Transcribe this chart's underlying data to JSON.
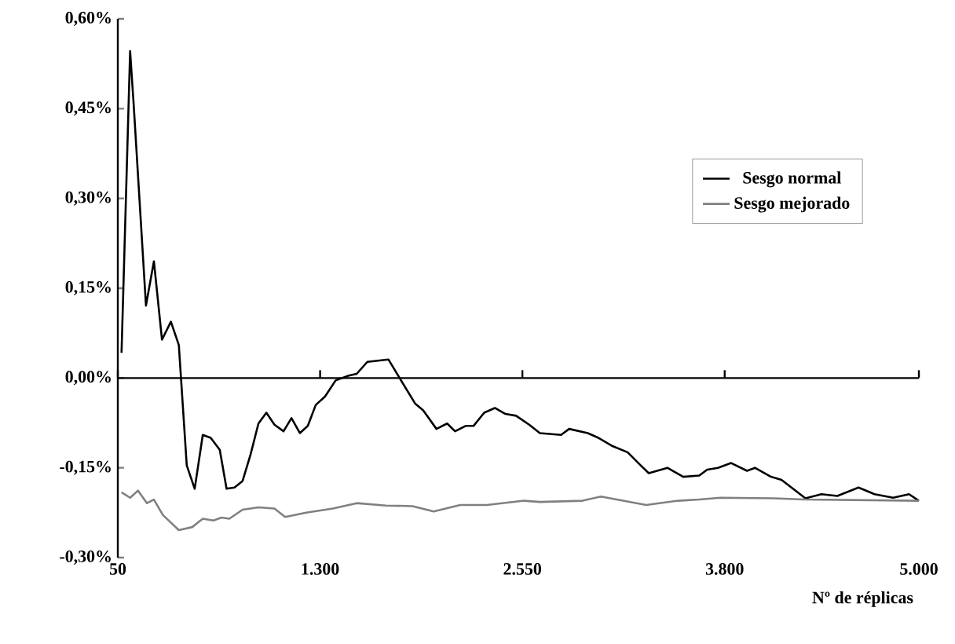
{
  "chart_data": {
    "type": "line",
    "xlabel": "Nº de réplicas",
    "xlim": [
      50,
      5000
    ],
    "ylim": [
      -0.3,
      0.6
    ],
    "xticks": [
      {
        "value": 50,
        "label": "50"
      },
      {
        "value": 1300,
        "label": "1.300"
      },
      {
        "value": 2550,
        "label": "2.550"
      },
      {
        "value": 3800,
        "label": "3.800"
      },
      {
        "value": 5000,
        "label": "5.000"
      }
    ],
    "yticks": [
      {
        "value": -0.3,
        "label": "-0,30%"
      },
      {
        "value": -0.15,
        "label": "-0,15%"
      },
      {
        "value": 0,
        "label": "0,00%"
      },
      {
        "value": 0.15,
        "label": "0,15%"
      },
      {
        "value": 0.3,
        "label": "0,30%"
      },
      {
        "value": 0.45,
        "label": "0,45%"
      },
      {
        "value": 0.6,
        "label": "0,60%"
      }
    ],
    "legend": "right",
    "ref_lines": [
      {
        "axis": "y",
        "value": 0,
        "color": "#000000"
      }
    ],
    "marker": "none",
    "line_style": "solid",
    "series": [
      {
        "name": "Sesgo normal",
        "color": "#000000",
        "x": [
          73,
          126,
          148,
          224,
          273,
          323,
          378,
          427,
          476,
          525,
          575,
          624,
          680,
          722,
          771,
          821,
          870,
          919,
          968,
          1018,
          1074,
          1123,
          1175,
          1224,
          1273,
          1330,
          1396,
          1477,
          1526,
          1592,
          1657,
          1722,
          1805,
          1888,
          1937,
          2019,
          2085,
          2134,
          2199,
          2248,
          2314,
          2380,
          2445,
          2511,
          2592,
          2658,
          2789,
          2839,
          2954,
          3020,
          3101,
          3200,
          3281,
          3331,
          3446,
          3544,
          3643,
          3692,
          3758,
          3840,
          3938,
          3987,
          4086,
          4151,
          4299,
          4398,
          4496,
          4627,
          4726,
          4841,
          4939,
          5000
        ],
        "values": [
          0.042,
          0.546,
          0.457,
          0.121,
          0.195,
          0.064,
          0.094,
          0.055,
          -0.146,
          -0.185,
          -0.095,
          -0.1,
          -0.12,
          -0.185,
          -0.183,
          -0.172,
          -0.128,
          -0.076,
          -0.058,
          -0.078,
          -0.089,
          -0.067,
          -0.092,
          -0.08,
          -0.045,
          -0.031,
          -0.004,
          0.004,
          0.007,
          0.027,
          0.029,
          0.031,
          -0.006,
          -0.043,
          -0.054,
          -0.085,
          -0.076,
          -0.089,
          -0.08,
          -0.08,
          -0.058,
          -0.05,
          -0.06,
          -0.063,
          -0.078,
          -0.092,
          -0.095,
          -0.085,
          -0.092,
          -0.1,
          -0.113,
          -0.124,
          -0.146,
          -0.159,
          -0.15,
          -0.165,
          -0.163,
          -0.153,
          -0.15,
          -0.142,
          -0.155,
          -0.15,
          -0.165,
          -0.17,
          -0.201,
          -0.194,
          -0.197,
          -0.183,
          -0.194,
          -0.2,
          -0.194,
          -0.205
        ]
      },
      {
        "name": "Sesgo mejorado",
        "color": "#808080",
        "x": [
          73,
          126,
          175,
          230,
          273,
          329,
          427,
          510,
          575,
          641,
          690,
          739,
          821,
          919,
          1018,
          1084,
          1214,
          1379,
          1526,
          1707,
          1871,
          2002,
          2166,
          2331,
          2560,
          2658,
          2921,
          3035,
          3315,
          3512,
          3643,
          3774,
          4102,
          4299,
          5000
        ],
        "values": [
          -0.191,
          -0.2,
          -0.188,
          -0.209,
          -0.203,
          -0.229,
          -0.254,
          -0.249,
          -0.235,
          -0.238,
          -0.233,
          -0.235,
          -0.22,
          -0.216,
          -0.218,
          -0.232,
          -0.225,
          -0.218,
          -0.209,
          -0.213,
          -0.214,
          -0.223,
          -0.212,
          -0.212,
          -0.205,
          -0.207,
          -0.205,
          -0.198,
          -0.212,
          -0.205,
          -0.203,
          -0.2,
          -0.201,
          -0.203,
          -0.205
        ]
      }
    ]
  }
}
